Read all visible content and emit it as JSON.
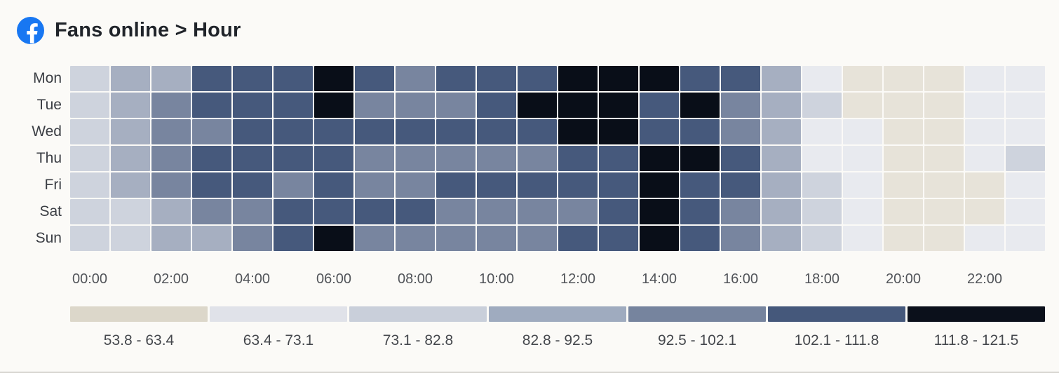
{
  "header": {
    "title": "Fans online > Hour",
    "icon": "facebook-logo"
  },
  "colors": {
    "background": "#fbfaf7",
    "facebook_blue": "#1877f2",
    "title_text": "#20242a",
    "day_label_text": "#3b3e44",
    "axis_label_text": "#515459",
    "legend_label_text": "#45484d",
    "bottom_edge": "#d8d6d1"
  },
  "chart_data": {
    "type": "heatmap",
    "title": "Fans online > Hour",
    "y_labels": [
      "Mon",
      "Tue",
      "Wed",
      "Thu",
      "Fri",
      "Sat",
      "Sun"
    ],
    "n_cols": 24,
    "x_tick_labels": [
      "00:00",
      "02:00",
      "04:00",
      "06:00",
      "08:00",
      "10:00",
      "12:00",
      "14:00",
      "16:00",
      "18:00",
      "20:00",
      "22:00"
    ],
    "x_tick_every_n_cols": 2,
    "legend_position": "bottom",
    "value_range": [
      53.8,
      121.5
    ],
    "buckets": [
      {
        "label": "53.8 - 63.4",
        "legend_color": "#dcd7ca",
        "cell_color": "#e7e3d9"
      },
      {
        "label": "63.4 - 73.1",
        "legend_color": "#e0e2e9",
        "cell_color": "#e8eaef"
      },
      {
        "label": "73.1 - 82.8",
        "legend_color": "#c9cfda",
        "cell_color": "#ced3dd"
      },
      {
        "label": "82.8 - 92.5",
        "legend_color": "#9fabbf",
        "cell_color": "#a6afc1"
      },
      {
        "label": "92.5 - 102.1",
        "legend_color": "#76849e",
        "cell_color": "#78859f"
      },
      {
        "label": "102.1 - 111.8",
        "legend_color": "#45587b",
        "cell_color": "#46597c"
      },
      {
        "label": "111.8 - 121.5",
        "legend_color": "#0b101b",
        "cell_color": "#090e18"
      }
    ],
    "levels_note": "bucket index 0-6 per cell, 0 = lightest (53.8-63.4), 6 = darkest (111.8-121.5), columns = hours 00:00-23:00",
    "levels": [
      [
        2,
        3,
        3,
        5,
        5,
        5,
        6,
        5,
        4,
        5,
        5,
        5,
        6,
        6,
        6,
        5,
        5,
        3,
        1,
        0,
        0,
        0,
        1,
        1
      ],
      [
        2,
        3,
        4,
        5,
        5,
        5,
        6,
        4,
        4,
        4,
        5,
        6,
        6,
        6,
        5,
        6,
        4,
        3,
        2,
        0,
        0,
        0,
        1,
        1
      ],
      [
        2,
        3,
        4,
        4,
        5,
        5,
        5,
        5,
        5,
        5,
        5,
        5,
        6,
        6,
        5,
        5,
        4,
        3,
        1,
        1,
        0,
        0,
        1,
        1
      ],
      [
        2,
        3,
        4,
        5,
        5,
        5,
        5,
        4,
        4,
        4,
        4,
        4,
        5,
        5,
        6,
        6,
        5,
        3,
        1,
        1,
        0,
        0,
        1,
        2
      ],
      [
        2,
        3,
        4,
        5,
        5,
        4,
        5,
        4,
        4,
        5,
        5,
        5,
        5,
        5,
        6,
        5,
        5,
        3,
        2,
        1,
        0,
        0,
        0,
        1
      ],
      [
        2,
        2,
        3,
        4,
        4,
        5,
        5,
        5,
        5,
        4,
        4,
        4,
        4,
        5,
        6,
        5,
        4,
        3,
        2,
        1,
        0,
        0,
        0,
        1
      ],
      [
        2,
        2,
        3,
        3,
        4,
        5,
        6,
        4,
        4,
        4,
        4,
        4,
        5,
        5,
        6,
        5,
        4,
        3,
        2,
        1,
        0,
        0,
        1,
        1
      ]
    ]
  }
}
